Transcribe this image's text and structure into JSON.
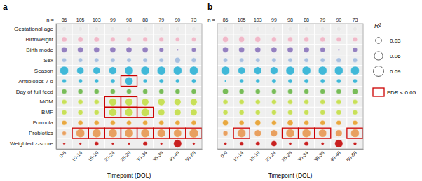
{
  "chart_data": [
    {
      "type": "bubble",
      "title": "a",
      "x_label": "Timepoint (DOL)",
      "grid": true,
      "categories": [
        "0-9",
        "10-14",
        "15-19",
        "20-24",
        "25-29",
        "30-34",
        "35-39",
        "40-49",
        "50-69"
      ],
      "top_label": "n =",
      "top_categories": [
        86,
        105,
        103,
        99,
        98,
        88,
        79,
        90,
        73
      ],
      "series": [
        {
          "name": "Gestational age",
          "color": "#e8e8e8",
          "values": [
            0.018,
            0.016,
            0.016,
            0.016,
            0.016,
            0.016,
            0.016,
            0.016,
            0.016
          ]
        },
        {
          "name": "Birthweight",
          "color": "#f0b8c8",
          "values": [
            0.022,
            0.022,
            0.022,
            0.018,
            0.018,
            0.018,
            0.018,
            0.016,
            0.016
          ]
        },
        {
          "name": "Birth mode",
          "color": "#9480c0",
          "values": [
            0.028,
            0.028,
            0.028,
            0.028,
            0.028,
            0.028,
            0.018,
            0.003,
            0.018
          ]
        },
        {
          "name": "Sex",
          "color": "#a8c0e0",
          "values": [
            0.016,
            0.016,
            0.016,
            0.016,
            0.016,
            0.016,
            0.016,
            0.026,
            0.018
          ]
        },
        {
          "name": "Season",
          "color": "#40b8d8",
          "values": [
            0.06,
            0.042,
            0.042,
            0.048,
            0.06,
            0.06,
            0.06,
            0.06,
            0.06
          ]
        },
        {
          "name": "Antibiotics 7 d",
          "color": "#40b8d8",
          "values": [
            0.014,
            0.014,
            0.014,
            0.016,
            0.052,
            0.014,
            0.016,
            0.014,
            0.016
          ]
        },
        {
          "name": "Day of full feed",
          "color": "#78bc58",
          "values": [
            0.02,
            0.02,
            0.02,
            0.02,
            0.02,
            0.02,
            0.02,
            0.02,
            0.02
          ]
        },
        {
          "name": "MOM",
          "color": "#c8e058",
          "values": [
            0.02,
            0.02,
            0.02,
            0.048,
            0.048,
            0.042,
            0.042,
            0.038,
            0.038
          ]
        },
        {
          "name": "BMF",
          "color": "#c8e058",
          "values": [
            0.02,
            0.02,
            0.02,
            0.05,
            0.055,
            0.055,
            0.036,
            0.036,
            0.036
          ]
        },
        {
          "name": "Formula",
          "color": "#e8a840",
          "values": [
            0.02,
            0.02,
            0.02,
            0.02,
            0.02,
            0.02,
            0.02,
            0.02,
            0.02
          ]
        },
        {
          "name": "Probiotics",
          "color": "#e8a060",
          "values": [
            0.014,
            0.062,
            0.062,
            0.062,
            0.062,
            0.062,
            0.058,
            0.052,
            0.068
          ]
        },
        {
          "name": "Weighted z-score",
          "color": "#c82020",
          "values": [
            0.005,
            0.005,
            0.014,
            0.005,
            0.005,
            0.016,
            0.005,
            0.052,
            0.005
          ]
        }
      ],
      "fdr": {
        "color": "#cc0000",
        "cells": [
          [
            5,
            4
          ],
          [
            7,
            3
          ],
          [
            7,
            4
          ],
          [
            8,
            3
          ],
          [
            8,
            4
          ],
          [
            8,
            5
          ],
          [
            10,
            1
          ],
          [
            10,
            2
          ],
          [
            10,
            3
          ],
          [
            10,
            4
          ],
          [
            10,
            5
          ],
          [
            10,
            6
          ],
          [
            10,
            7
          ],
          [
            10,
            8
          ]
        ]
      }
    },
    {
      "type": "bubble",
      "title": "b",
      "x_label": "Timepoint (DOL)",
      "grid": true,
      "categories": [
        "0-9",
        "10-14",
        "15-19",
        "20-24",
        "25-29",
        "30-34",
        "35-39",
        "40-49",
        "50-69"
      ],
      "top_label": "n =",
      "top_categories": [
        86,
        105,
        103,
        99,
        98,
        88,
        79,
        90,
        73
      ],
      "series": [
        {
          "color": "#e8e8e8",
          "values": [
            0.018,
            0.016,
            0.016,
            0.016,
            0.016,
            0.016,
            0.016,
            0.016,
            0.016
          ]
        },
        {
          "color": "#f0b8c8",
          "values": [
            0.026,
            0.026,
            0.026,
            0.02,
            0.02,
            0.02,
            0.02,
            0.018,
            0.018
          ]
        },
        {
          "color": "#9480c0",
          "values": [
            0.028,
            0.028,
            0.028,
            0.028,
            0.028,
            0.028,
            0.022,
            0.003,
            0.02
          ]
        },
        {
          "color": "#a8c0e0",
          "values": [
            0.016,
            0.016,
            0.016,
            0.016,
            0.016,
            0.016,
            0.016,
            0.02,
            0.018
          ]
        },
        {
          "color": "#40b8d8",
          "values": [
            0.06,
            0.042,
            0.048,
            0.048,
            0.06,
            0.06,
            0.06,
            0.06,
            0.06
          ]
        },
        {
          "color": "#40b8d8",
          "values": [
            0.003,
            0.014,
            0.014,
            0.016,
            0.016,
            0.016,
            0.016,
            0.016,
            0.016
          ]
        },
        {
          "color": "#78bc58",
          "values": [
            0.028,
            0.02,
            0.02,
            0.02,
            0.02,
            0.02,
            0.02,
            0.02,
            0.026
          ]
        },
        {
          "color": "#c8e058",
          "values": [
            0.02,
            0.02,
            0.02,
            0.02,
            0.02,
            0.02,
            0.02,
            0.02,
            0.02
          ]
        },
        {
          "color": "#c8e058",
          "values": [
            0.02,
            0.02,
            0.02,
            0.02,
            0.02,
            0.02,
            0.02,
            0.02,
            0.02
          ]
        },
        {
          "color": "#e8a840",
          "values": [
            0.026,
            0.02,
            0.026,
            0.02,
            0.026,
            0.02,
            0.02,
            0.02,
            0.02
          ]
        },
        {
          "color": "#e8a060",
          "values": [
            0.02,
            0.06,
            0.038,
            0.038,
            0.06,
            0.06,
            0.052,
            0.038,
            0.058
          ]
        },
        {
          "color": "#c82020",
          "values": [
            0.007,
            0.013,
            0.015,
            0.026,
            0.007,
            0.016,
            0.007,
            0.052,
            0.009
          ]
        }
      ],
      "fdr": {
        "color": "#cc0000",
        "label": "FDR < 0.05",
        "cells": [
          [
            10,
            1
          ],
          [
            10,
            4
          ],
          [
            10,
            5
          ],
          [
            10,
            6
          ],
          [
            10,
            8
          ]
        ]
      },
      "size_legend": {
        "title": "R²",
        "values": [
          0.03,
          0.06,
          0.09
        ]
      }
    }
  ]
}
